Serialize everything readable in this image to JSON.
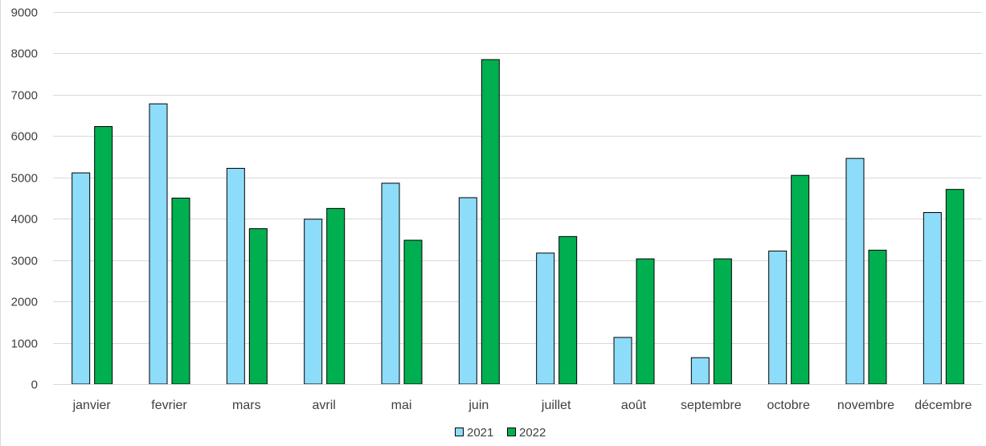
{
  "chart_data": {
    "type": "bar",
    "title": "",
    "xlabel": "",
    "ylabel": "",
    "categories": [
      "janvier",
      "fevrier",
      "mars",
      "avril",
      "mai",
      "juin",
      "juillet",
      "août",
      "septembre",
      "octobre",
      "novembre",
      "décembre"
    ],
    "series": [
      {
        "name": "2021",
        "color": "#8ddcfa",
        "values": [
          5110,
          6780,
          5220,
          3990,
          4860,
          4510,
          3170,
          1130,
          640,
          3220,
          5460,
          4150
        ]
      },
      {
        "name": "2022",
        "color": "#00b050",
        "values": [
          6230,
          4500,
          3760,
          4250,
          3480,
          7850,
          3570,
          3030,
          3030,
          5050,
          3240,
          4710
        ]
      }
    ],
    "ylim": [
      0,
      9000
    ],
    "yticks": [
      0,
      1000,
      2000,
      3000,
      4000,
      5000,
      6000,
      7000,
      8000,
      9000
    ],
    "grid": true,
    "legend": "bottom-center",
    "bar_outline_color": "#000000",
    "grid_color": "#d9d9d9"
  }
}
